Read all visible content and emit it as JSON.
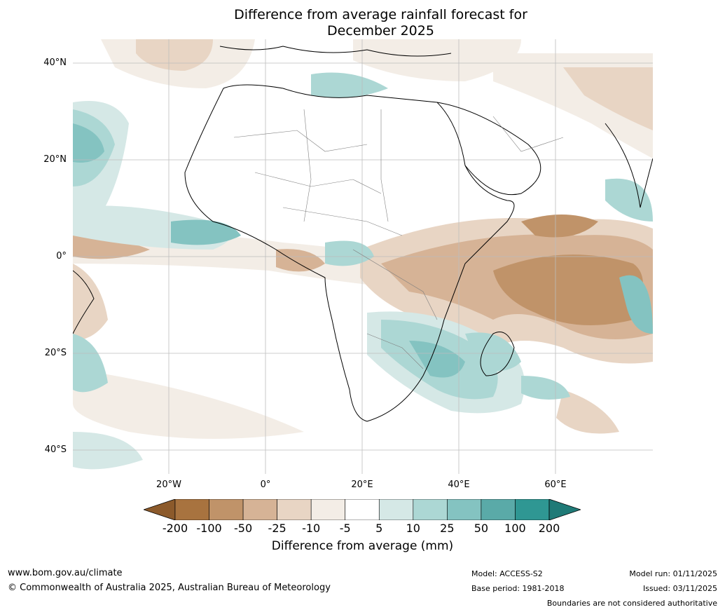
{
  "title_line1": "Difference from average rainfall forecast for",
  "title_line2": "December 2025",
  "lat_labels": [
    "40°N",
    "20°N",
    "0°",
    "20°S",
    "40°S"
  ],
  "lon_labels": [
    "20°W",
    "0°",
    "20°E",
    "40°E",
    "60°E"
  ],
  "colorbar": {
    "labels": [
      "-200",
      "-100",
      "-50",
      "-25",
      "-10",
      "-5",
      "5",
      "10",
      "25",
      "50",
      "100",
      "200"
    ],
    "colors": [
      "#8c5a2b",
      "#a8733f",
      "#c09369",
      "#d6b396",
      "#e8d5c4",
      "#f3ede6",
      "#ffffff",
      "#d5e8e6",
      "#acd7d4",
      "#84c3c1",
      "#5aaaa8",
      "#2f9793",
      "#1f7a77"
    ],
    "title": "Difference from average (mm)"
  },
  "footer": {
    "url": "www.bom.gov.au/climate",
    "copyright": "© Commonwealth of Australia 2025, Australian Bureau of Meteorology",
    "model": "Model: ACCESS-S2",
    "base_period": "Base period: 1981-2018",
    "model_run": "Model run: 01/11/2025",
    "issued": "Issued: 03/11/2025",
    "boundaries": "Boundaries are not considered authoritative"
  }
}
